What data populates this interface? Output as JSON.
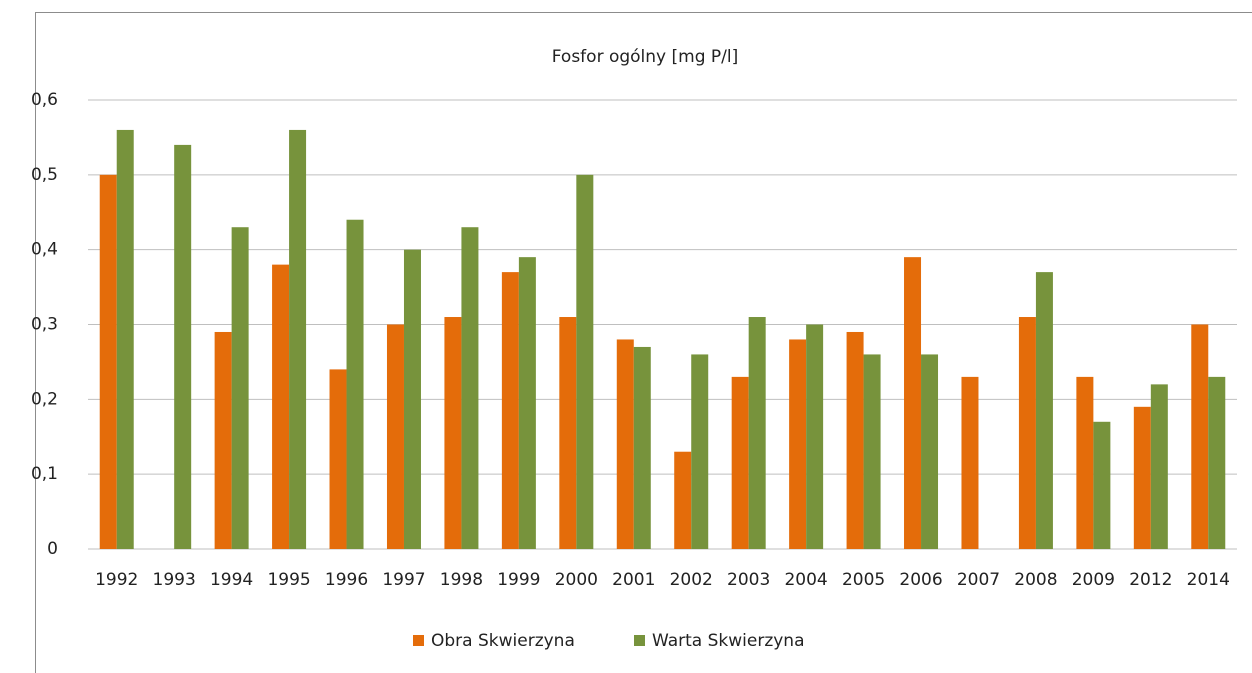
{
  "chart_data": {
    "type": "bar",
    "title": "Fosfor ogólny [mg P/l]",
    "categories": [
      "1992",
      "1993",
      "1994",
      "1995",
      "1996",
      "1997",
      "1998",
      "1999",
      "2000",
      "2001",
      "2002",
      "2003",
      "2004",
      "2005",
      "2006",
      "2007",
      "2008",
      "2009",
      "2012",
      "2014"
    ],
    "series": [
      {
        "name": "Obra Skwierzyna",
        "color": "#e46c0a",
        "values": [
          0.5,
          null,
          0.29,
          0.38,
          0.24,
          0.3,
          0.31,
          0.37,
          0.31,
          0.28,
          0.13,
          0.23,
          0.28,
          0.29,
          0.39,
          0.23,
          0.31,
          0.23,
          0.19,
          0.3
        ]
      },
      {
        "name": "Warta Skwierzyna",
        "color": "#77933c",
        "values": [
          0.56,
          0.54,
          0.43,
          0.56,
          0.44,
          0.4,
          0.43,
          0.39,
          0.5,
          0.27,
          0.26,
          0.31,
          0.3,
          0.26,
          0.26,
          null,
          0.37,
          0.17,
          0.22,
          0.23
        ]
      }
    ],
    "ylim": [
      0,
      0.6
    ],
    "yticks": [
      0,
      {
        "value": 0.1,
        "label": "0,1"
      },
      {
        "value": 0.2,
        "label": "0,2"
      },
      {
        "value": 0.3,
        "label": "0,3"
      },
      {
        "value": 0.4,
        "label": "0,4"
      },
      {
        "value": 0.5,
        "label": "0,5"
      },
      {
        "value": 0.6,
        "label": "0,6"
      }
    ],
    "grid": true,
    "legend": "bottom"
  }
}
